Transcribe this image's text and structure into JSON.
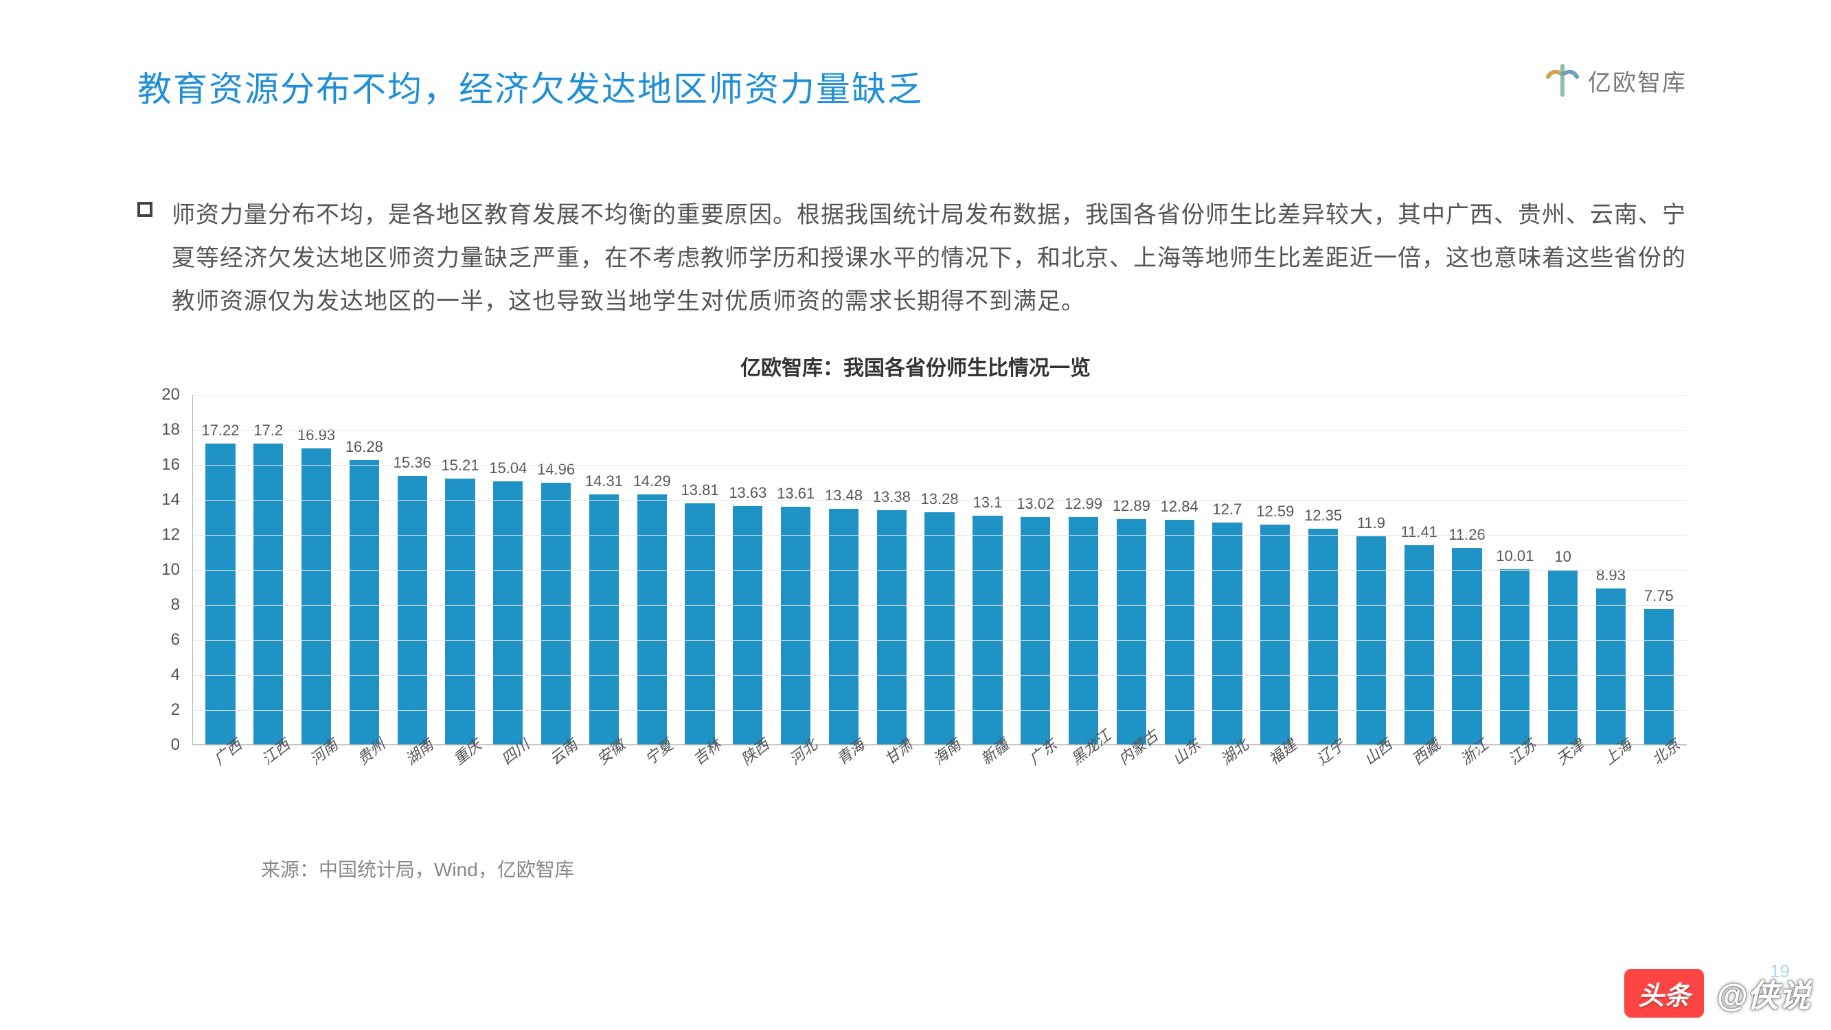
{
  "title": "教育资源分布不均，经济欠发达地区师资力量缺乏",
  "logo_text": "亿欧智库",
  "description": "师资力量分布不均，是各地区教育发展不均衡的重要原因。根据我国统计局发布数据，我国各省份师生比差异较大，其中广西、贵州、云南、宁夏等经济欠发达地区师资力量缺乏严重，在不考虑教师学历和授课水平的情况下，和北京、上海等地师生比差距近一倍，这也意味着这些省份的教师资源仅为发达地区的一半，这也导致当地学生对优质师资的需求长期得不到满足。",
  "chart": {
    "type": "bar",
    "title": "亿欧智库：我国各省份师生比情况一览",
    "categories": [
      "广西",
      "江西",
      "河南",
      "贵州",
      "湖南",
      "重庆",
      "四川",
      "云南",
      "安徽",
      "宁夏",
      "吉林",
      "陕西",
      "河北",
      "青海",
      "甘肃",
      "海南",
      "新疆",
      "广东",
      "黑龙江",
      "内蒙古",
      "山东",
      "湖北",
      "福建",
      "辽宁",
      "山西",
      "西藏",
      "浙江",
      "江苏",
      "天津",
      "上海",
      "北京"
    ],
    "values": [
      17.22,
      17.2,
      16.93,
      16.28,
      15.36,
      15.21,
      15.04,
      14.96,
      14.31,
      14.29,
      13.81,
      13.63,
      13.61,
      13.48,
      13.38,
      13.28,
      13.1,
      13.02,
      12.99,
      12.89,
      12.84,
      12.7,
      12.59,
      12.35,
      11.9,
      11.41,
      11.26,
      10.01,
      10,
      8.93,
      7.75
    ],
    "bar_color": "#1f93c6",
    "ylim": [
      0,
      20
    ],
    "ytick_step": 2,
    "grid_color": "#e6e6e6",
    "axis_color": "#b5b5b5",
    "value_label_fontsize": 22,
    "value_label_color": "#555555",
    "x_label_fontsize": 22,
    "x_label_color": "#555555",
    "x_label_rotation_deg": -38,
    "background_color": "#ffffff"
  },
  "source": "来源：中国统计局，Wind，亿欧智库",
  "watermark_badge": "头条",
  "watermark_text": "@侠说",
  "page_number": "19"
}
